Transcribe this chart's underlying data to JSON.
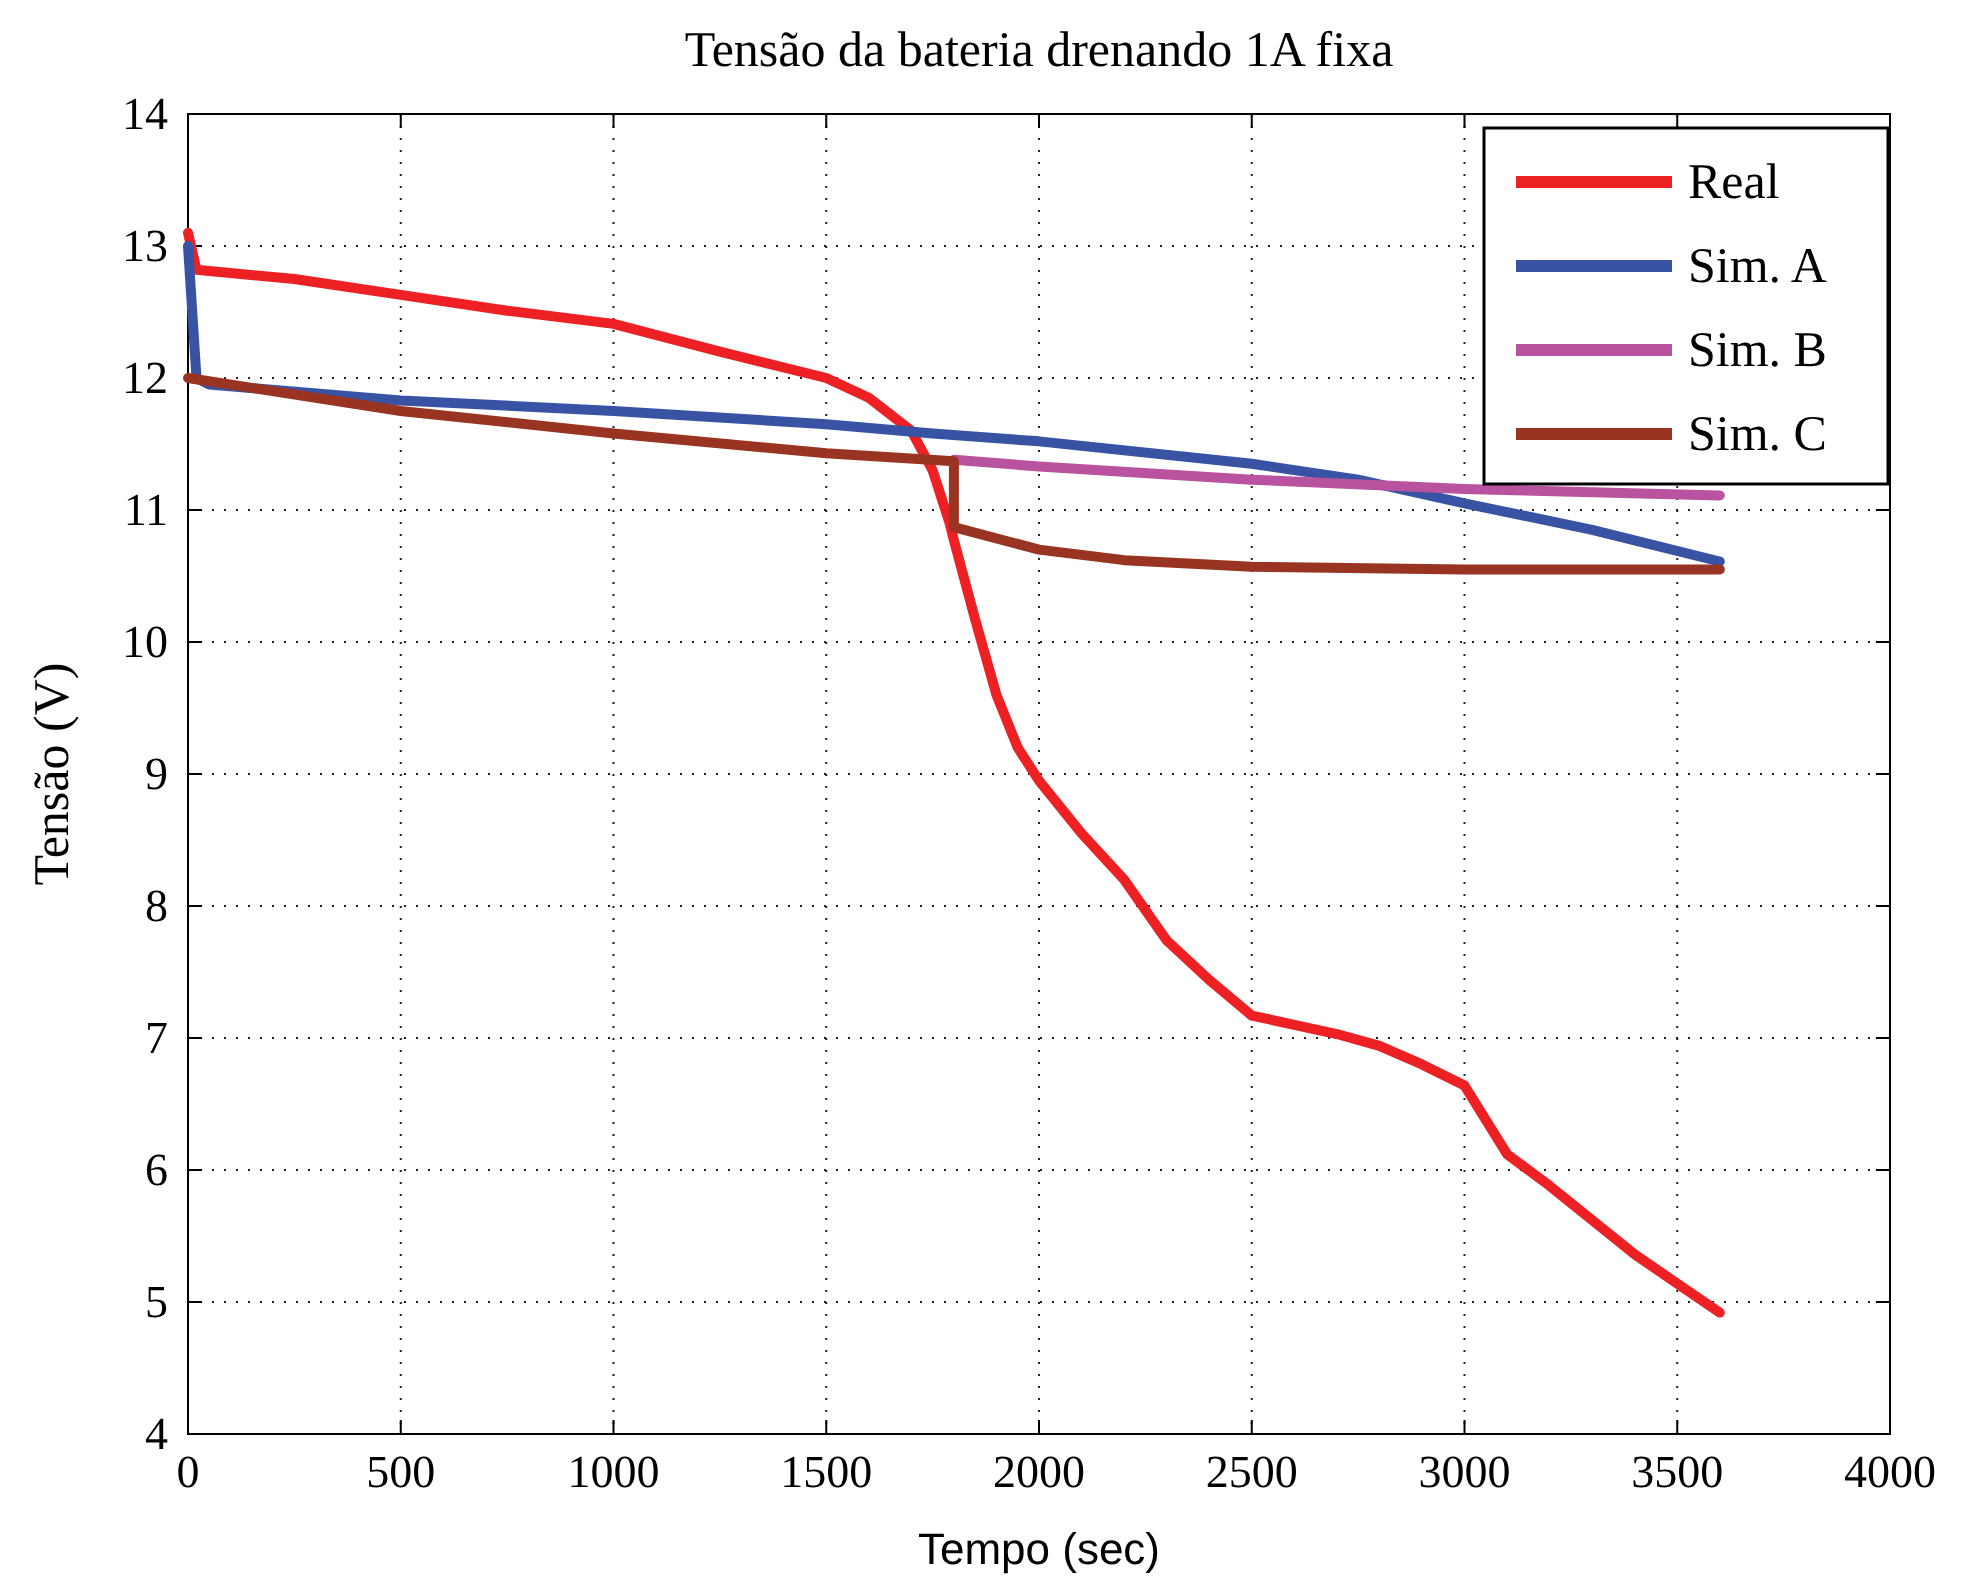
{
  "chart_data": {
    "type": "line",
    "title": "Tensão da bateria drenando 1A fixa",
    "xlabel": "Tempo (sec)",
    "ylabel": "Tensão (V)",
    "xlim": [
      0,
      4000
    ],
    "xticks": [
      0,
      500,
      1000,
      1500,
      2000,
      2500,
      3000,
      3500,
      4000
    ],
    "ylim": [
      4,
      14
    ],
    "yticks": [
      4,
      5,
      6,
      7,
      8,
      9,
      10,
      11,
      12,
      13,
      14
    ],
    "grid": true,
    "legend": "top right",
    "line_style": "solid",
    "marker": "none",
    "series": [
      {
        "name": "Real",
        "color": "#ed2024",
        "x": [
          0,
          20,
          50,
          250,
          500,
          750,
          1000,
          1250,
          1500,
          1600,
          1700,
          1750,
          1790,
          1800,
          1850,
          1900,
          1950,
          2000,
          2100,
          2200,
          2300,
          2400,
          2500,
          2600,
          2700,
          2800,
          2900,
          3000,
          3100,
          3200,
          3300,
          3400,
          3500,
          3600
        ],
        "values": [
          13.1,
          12.82,
          12.81,
          12.75,
          12.63,
          12.51,
          12.41,
          12.2,
          12.0,
          11.85,
          11.6,
          11.3,
          10.9,
          10.77,
          10.17,
          9.6,
          9.2,
          8.95,
          8.55,
          8.2,
          7.74,
          7.44,
          7.17,
          7.1,
          7.03,
          6.94,
          6.8,
          6.64,
          6.12,
          5.88,
          5.62,
          5.36,
          5.14,
          4.92
        ]
      },
      {
        "name": "Sim. A",
        "color": "#3853a4",
        "x": [
          0,
          20,
          50,
          500,
          1000,
          1500,
          1750,
          2000,
          2500,
          2750,
          3000,
          3300,
          3600
        ],
        "values": [
          13.0,
          12.0,
          11.95,
          11.83,
          11.75,
          11.65,
          11.58,
          11.52,
          11.35,
          11.23,
          11.05,
          10.85,
          10.61
        ]
      },
      {
        "name": "Sim. B",
        "color": "#b9539f",
        "x": [
          1800,
          2000,
          2500,
          3000,
          3600
        ],
        "values": [
          11.38,
          11.33,
          11.23,
          11.16,
          11.11
        ]
      },
      {
        "name": "Sim. C",
        "color": "#983421",
        "x": [
          0,
          500,
          1000,
          1500,
          1800,
          1800,
          2000,
          2200,
          2500,
          3000,
          3600
        ],
        "values": [
          12.0,
          11.75,
          11.58,
          11.43,
          11.37,
          10.87,
          10.7,
          10.62,
          10.57,
          10.55,
          10.55
        ]
      }
    ]
  }
}
